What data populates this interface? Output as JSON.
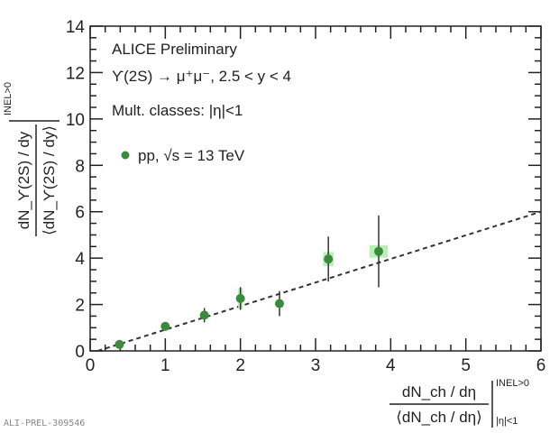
{
  "chart_data": {
    "type": "scatter",
    "title": "",
    "annotations": {
      "collab": "ALICE Preliminary",
      "process": "ϒ(2S) → μ⁺μ⁻, 2.5 < y < 4",
      "mult": "Mult. classes: |η|<1"
    },
    "legend": {
      "position": "top-left",
      "entries": [
        {
          "label": "pp, √s = 13 TeV",
          "color": "#3a8c3a"
        }
      ]
    },
    "xlabel": {
      "num": "dN_ch / dη",
      "den": "⟨dN_ch / dη⟩",
      "sup": "INEL>0",
      "sub": "|η|<1"
    },
    "ylabel": {
      "num": "dN_ϒ(2S) / dy",
      "den": "⟨dN_ϒ(2S) / dy⟩",
      "sup": "INEL>0"
    },
    "xlim": [
      0,
      6
    ],
    "ylim": [
      0,
      14
    ],
    "xticks": [
      "0",
      "1",
      "2",
      "3",
      "4",
      "5",
      "6"
    ],
    "yticks": [
      "0",
      "2",
      "4",
      "6",
      "8",
      "10",
      "12",
      "14"
    ],
    "series": [
      {
        "name": "pp, √s = 13 TeV",
        "color": "#3a8c3a",
        "syst_color": "#b8f0b8",
        "points": [
          {
            "x": 0.39,
            "y": 0.28,
            "stat": 0.06,
            "sx": 0.03,
            "sy": 0.03
          },
          {
            "x": 1.0,
            "y": 1.06,
            "stat": 0.1,
            "sx": 0.03,
            "sy": 0.06
          },
          {
            "x": 1.52,
            "y": 1.54,
            "stat": 0.31,
            "sx": 0.03,
            "sy": 0.1
          },
          {
            "x": 2.0,
            "y": 2.26,
            "stat": 0.49,
            "sx": 0.03,
            "sy": 0.45
          },
          {
            "x": 2.52,
            "y": 2.04,
            "stat": 0.54,
            "sx": 0.03,
            "sy": 0.15
          },
          {
            "x": 3.17,
            "y": 3.96,
            "stat": 0.97,
            "sx": 0.07,
            "sy": 0.3
          },
          {
            "x": 3.84,
            "y": 4.29,
            "stat": 1.55,
            "sx": 0.12,
            "sy": 0.27
          }
        ]
      }
    ],
    "reference_line": {
      "label": "y = x",
      "points": [
        [
          0.1,
          0
        ],
        [
          6,
          6
        ]
      ],
      "style": "dashed"
    }
  },
  "watermark": "ALI-PREL-309546"
}
